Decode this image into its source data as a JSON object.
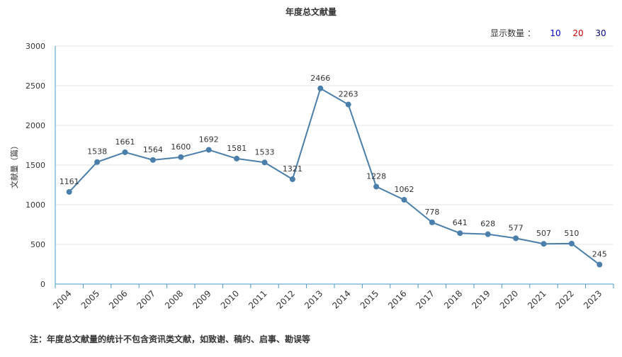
{
  "title": "年度总文献量",
  "display_count": {
    "label": "显示数量 ：",
    "options": [
      {
        "value": "10",
        "color": "#0000cc"
      },
      {
        "value": "20",
        "color": "#cc0000"
      },
      {
        "value": "30",
        "color": "#000080"
      }
    ]
  },
  "footnote": "注：年度总文献量的统计不包含资讯类文献，如致谢、稿约、启事、勘误等",
  "colors": {
    "line": "#4a7eab",
    "axis": "#4a9acb",
    "grid": "#e3e3e3"
  },
  "chart_data": {
    "type": "line",
    "title": "年度总文献量",
    "ylabel": "文献量（篇）",
    "xlabel": "",
    "ylim": [
      0,
      3000
    ],
    "yticks": [
      0,
      500,
      1000,
      1500,
      2000,
      2500,
      3000
    ],
    "categories": [
      "2004",
      "2005",
      "2006",
      "2007",
      "2008",
      "2009",
      "2010",
      "2011",
      "2012",
      "2013",
      "2014",
      "2015",
      "2016",
      "2017",
      "2018",
      "2019",
      "2020",
      "2021",
      "2022",
      "2023"
    ],
    "values": [
      1161,
      1538,
      1661,
      1564,
      1600,
      1692,
      1581,
      1533,
      1321,
      2466,
      2263,
      1228,
      1062,
      778,
      641,
      628,
      577,
      507,
      510,
      245
    ],
    "grid": true
  }
}
